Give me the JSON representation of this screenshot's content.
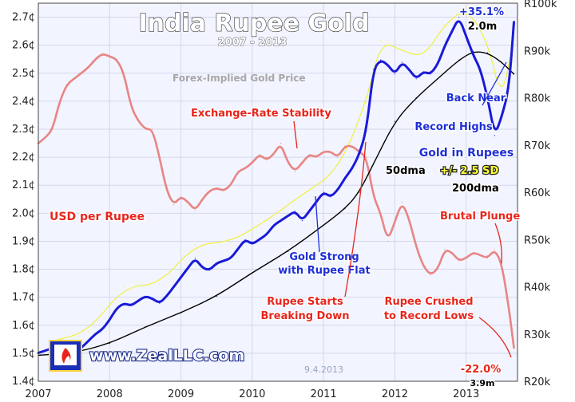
{
  "chart_data": {
    "type": "line",
    "title": "India Rupee Gold",
    "subtitle": "2007 - 2013",
    "x_ticks": [
      "2007",
      "2008",
      "2009",
      "2010",
      "2011",
      "2012",
      "2013"
    ],
    "x_range": [
      2007.0,
      2013.72
    ],
    "y_left": {
      "ticks": [
        "1.4¢",
        "1.5¢",
        "1.6¢",
        "1.7¢",
        "1.8¢",
        "1.9¢",
        "2.0¢",
        "2.1¢",
        "2.2¢",
        "2.3¢",
        "2.4¢",
        "2.5¢",
        "2.6¢",
        "2.7¢"
      ],
      "range": [
        1.4,
        2.75
      ]
    },
    "y_right": {
      "ticks": [
        "R20k",
        "R30k",
        "R40k",
        "R50k",
        "R60k",
        "R70k",
        "R80k",
        "R90k",
        "R100k"
      ],
      "range": [
        20000,
        100000
      ]
    },
    "series": [
      {
        "name": "USD per Rupee",
        "axis": "left",
        "color": "#e88585",
        "x": [
          2007.0,
          2007.1,
          2007.2,
          2007.3,
          2007.4,
          2007.5,
          2007.6,
          2007.7,
          2007.8,
          2007.9,
          2008.0,
          2008.1,
          2008.2,
          2008.3,
          2008.4,
          2008.5,
          2008.6,
          2008.7,
          2008.8,
          2008.9,
          2009.0,
          2009.1,
          2009.2,
          2009.3,
          2009.4,
          2009.5,
          2009.6,
          2009.7,
          2009.8,
          2009.9,
          2010.0,
          2010.1,
          2010.2,
          2010.3,
          2010.4,
          2010.5,
          2010.6,
          2010.7,
          2010.8,
          2010.9,
          2011.0,
          2011.1,
          2011.2,
          2011.3,
          2011.4,
          2011.5,
          2011.6,
          2011.7,
          2011.8,
          2011.9,
          2012.0,
          2012.1,
          2012.2,
          2012.3,
          2012.4,
          2012.5,
          2012.6,
          2012.7,
          2012.8,
          2012.9,
          2013.0,
          2013.1,
          2013.2,
          2013.3,
          2013.4,
          2013.5,
          2013.6,
          2013.67
        ],
        "values": [
          2.25,
          2.27,
          2.3,
          2.4,
          2.46,
          2.48,
          2.5,
          2.52,
          2.55,
          2.57,
          2.56,
          2.55,
          2.5,
          2.38,
          2.33,
          2.3,
          2.3,
          2.2,
          2.08,
          2.03,
          2.06,
          2.04,
          2.01,
          2.05,
          2.08,
          2.09,
          2.08,
          2.1,
          2.15,
          2.16,
          2.18,
          2.21,
          2.19,
          2.21,
          2.25,
          2.18,
          2.15,
          2.18,
          2.21,
          2.2,
          2.22,
          2.22,
          2.2,
          2.24,
          2.24,
          2.22,
          2.2,
          2.06,
          2.0,
          1.9,
          1.97,
          2.04,
          1.98,
          1.88,
          1.81,
          1.78,
          1.8,
          1.87,
          1.86,
          1.83,
          1.84,
          1.86,
          1.85,
          1.84,
          1.87,
          1.82,
          1.66,
          1.52
        ]
      },
      {
        "name": "Gold in Rupees",
        "axis": "right",
        "color": "#1a1ad8",
        "x": [
          2007.0,
          2007.1,
          2007.2,
          2007.3,
          2007.4,
          2007.5,
          2007.6,
          2007.7,
          2007.8,
          2007.9,
          2008.0,
          2008.1,
          2008.2,
          2008.3,
          2008.4,
          2008.5,
          2008.6,
          2008.7,
          2008.8,
          2008.9,
          2009.0,
          2009.1,
          2009.2,
          2009.3,
          2009.4,
          2009.5,
          2009.6,
          2009.7,
          2009.8,
          2009.9,
          2010.0,
          2010.1,
          2010.2,
          2010.3,
          2010.4,
          2010.5,
          2010.6,
          2010.7,
          2010.8,
          2010.9,
          2011.0,
          2011.1,
          2011.2,
          2011.3,
          2011.4,
          2011.5,
          2011.6,
          2011.7,
          2011.8,
          2011.9,
          2012.0,
          2012.1,
          2012.2,
          2012.3,
          2012.4,
          2012.5,
          2012.6,
          2012.7,
          2012.8,
          2012.9,
          2013.0,
          2013.1,
          2013.2,
          2013.3,
          2013.4,
          2013.5,
          2013.6,
          2013.67
        ],
        "values": [
          26000,
          26500,
          27000,
          26000,
          26200,
          26400,
          27000,
          28500,
          30000,
          31000,
          33000,
          35500,
          36500,
          36000,
          37000,
          38000,
          37500,
          36500,
          38000,
          40000,
          42000,
          44000,
          46000,
          44000,
          43500,
          45000,
          45500,
          46000,
          48000,
          50000,
          49000,
          50000,
          51000,
          53000,
          54000,
          55000,
          56000,
          54000,
          56000,
          58000,
          60000,
          59000,
          60500,
          63000,
          65000,
          68000,
          73000,
          86000,
          88000,
          87000,
          85000,
          87500,
          86000,
          84000,
          85500,
          85000,
          87000,
          91000,
          94000,
          97000,
          93000,
          89000,
          86000,
          80000,
          72000,
          76000,
          82000,
          96000
        ]
      },
      {
        "name": "200dma",
        "axis": "right",
        "color": "#000000",
        "x": [
          2007.0,
          2007.5,
          2008.0,
          2008.5,
          2009.0,
          2009.5,
          2010.0,
          2010.5,
          2011.0,
          2011.3,
          2011.5,
          2011.7,
          2012.0,
          2012.3,
          2012.6,
          2012.9,
          2013.1,
          2013.3,
          2013.5,
          2013.67
        ],
        "values": [
          25500,
          26000,
          28000,
          31500,
          34500,
          38000,
          43000,
          47500,
          53000,
          56500,
          60000,
          66000,
          75000,
          80000,
          84000,
          88000,
          89800,
          89500,
          87500,
          85000
        ]
      },
      {
        "name": "50dma +/- 2.5 SD",
        "axis": "right",
        "color": "#f0f030",
        "x": [
          2007.2,
          2007.7,
          2008.2,
          2008.7,
          2009.2,
          2009.7,
          2010.2,
          2010.7,
          2011.2,
          2011.6,
          2011.8,
          2012.1,
          2012.4,
          2012.7,
          2013.0,
          2013.3,
          2013.5,
          2013.67
        ],
        "values": [
          28500,
          30500,
          40000,
          40500,
          49000,
          49500,
          54000,
          59500,
          64500,
          79000,
          92000,
          90000,
          88500,
          95500,
          99000,
          92000,
          79000,
          93000
        ]
      }
    ],
    "annotations": [
      "Forex-Implied Gold Price",
      "Exchange-Rate Stability",
      "Back Near Record Highs",
      "Gold in Rupees",
      "50dma",
      "+/- 2.5 SD",
      "200dma",
      "USD per Rupee",
      "Brutal Plunge",
      "Gold Strong with Rupee Flat",
      "Rupee Starts Breaking Down",
      "Rupee Crushed to Record Lows",
      "+35.1%",
      "2.0m",
      "-22.0%",
      "3.9m",
      "9.4.2013",
      "www.ZealLLC.com"
    ],
    "grid": true,
    "legend": "none"
  }
}
